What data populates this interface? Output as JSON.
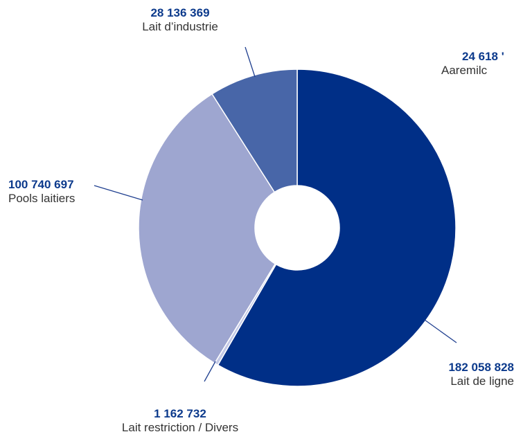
{
  "chart_data": {
    "type": "pie",
    "style": "donut",
    "slices": [
      {
        "label": "Lait de ligne",
        "value_text": "182 058 828",
        "value": 182058828,
        "color": "#002f87"
      },
      {
        "label": "Lait restriction / Divers",
        "value_text": "1 162 732",
        "value": 1162732,
        "color": "#c3c9e6"
      },
      {
        "label": "Pools laitiers",
        "value_text": "100 740 697",
        "value": 100740697,
        "color": "#9ea6d0"
      },
      {
        "label": "Lait d’industrie",
        "value_text": "28 136 369",
        "value": 28136369,
        "color": "#4866a8"
      }
    ],
    "extra_label": {
      "label": "Aaremilc",
      "value_text": "24 618 '"
    }
  }
}
